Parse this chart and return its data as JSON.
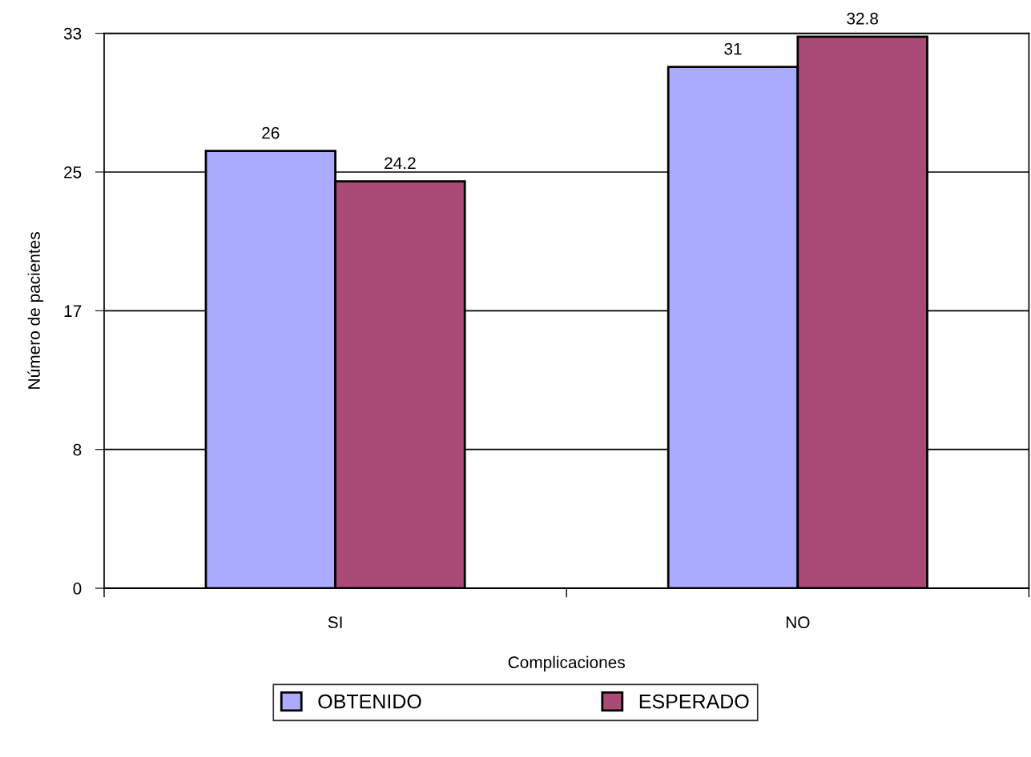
{
  "chart_data": {
    "type": "bar",
    "xlabel": "Complicaciones",
    "ylabel": "Número de pacientes",
    "categories": [
      "SI",
      "NO"
    ],
    "series": [
      {
        "name": "OBTENIDO",
        "color": "#aaaaff",
        "values": [
          26,
          31
        ]
      },
      {
        "name": "ESPERADO",
        "color": "#aa4a77",
        "values": [
          24.2,
          32.8
        ]
      }
    ],
    "ylim": [
      0,
      33
    ],
    "yticks": [
      0,
      {
        "value": 8.25,
        "label": "8"
      },
      {
        "value": 16.5,
        "label": "17"
      },
      {
        "value": 24.75,
        "label": "25"
      },
      33
    ],
    "grid": "y",
    "data_labels": true,
    "legend": "bottom"
  }
}
